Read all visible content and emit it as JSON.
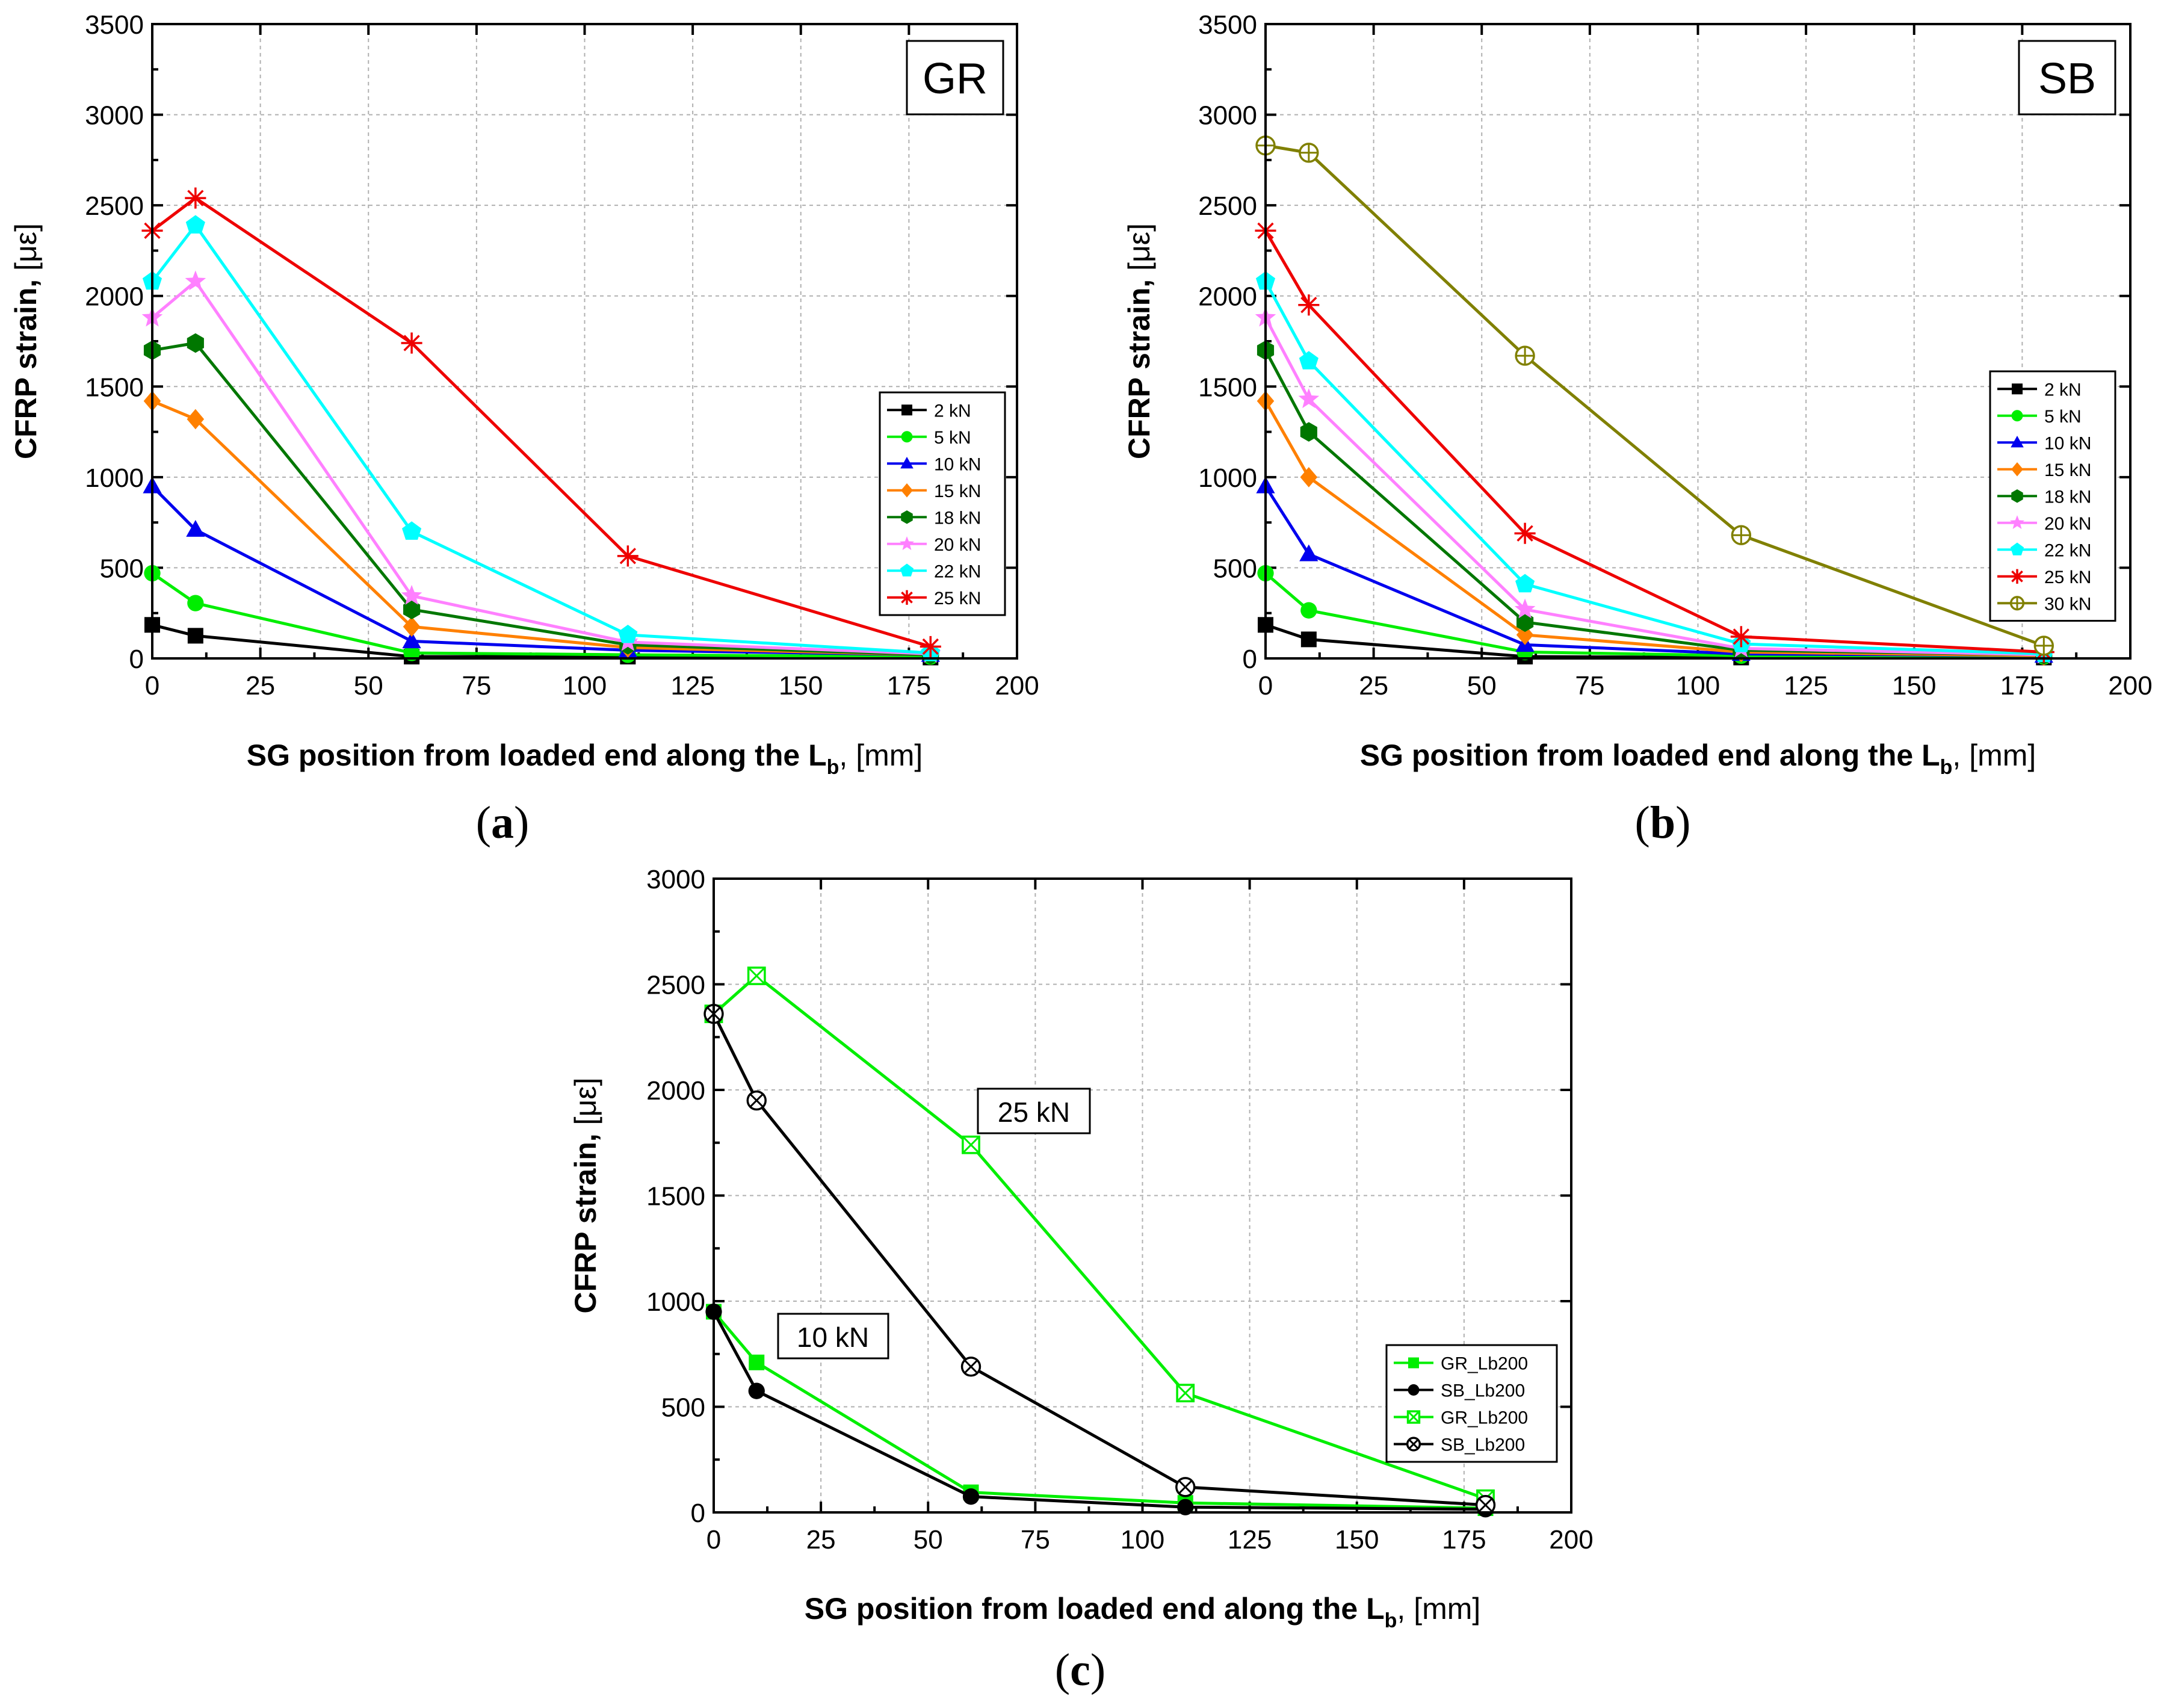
{
  "figure": {
    "panels": [
      {
        "letter": "a",
        "tag": "GR"
      },
      {
        "letter": "b",
        "tag": "SB"
      },
      {
        "letter": "c",
        "tag": ""
      }
    ],
    "annotations": [
      {
        "text": "25 kN"
      },
      {
        "text": "10 kN"
      }
    ]
  },
  "chart_data": [
    {
      "type": "line",
      "title": "",
      "tag": "GR",
      "xlabel_main": "SG position from loaded end along the L",
      "xlabel_sub": "b",
      "xlabel_unit": ", [mm]",
      "ylabel_main": "CFRP strain, ",
      "ylabel_unit": "[με]",
      "xlim": [
        0,
        200
      ],
      "ylim": [
        0,
        3500
      ],
      "xticks": [
        0,
        25,
        50,
        75,
        100,
        125,
        150,
        175,
        200
      ],
      "yticks": [
        0,
        500,
        1000,
        1500,
        2000,
        2500,
        3000,
        3500
      ],
      "grid": true,
      "legend_position": "middle-right",
      "x": [
        0,
        10,
        60,
        110,
        180
      ],
      "series": [
        {
          "name": "2 kN",
          "color": "#000000",
          "marker": "square",
          "values": [
            185,
            125,
            10,
            10,
            5
          ]
        },
        {
          "name": "5 kN",
          "color": "#00ee00",
          "marker": "circle",
          "values": [
            470,
            305,
            30,
            20,
            10
          ]
        },
        {
          "name": "10 kN",
          "color": "#0000ee",
          "marker": "triangle",
          "values": [
            950,
            710,
            95,
            45,
            20
          ]
        },
        {
          "name": "15 kN",
          "color": "#ff8000",
          "marker": "diamond",
          "values": [
            1420,
            1320,
            175,
            60,
            20
          ]
        },
        {
          "name": "18 kN",
          "color": "#007700",
          "marker": "hexagon",
          "values": [
            1700,
            1740,
            270,
            75,
            20
          ]
        },
        {
          "name": "20 kN",
          "color": "#ff80ff",
          "marker": "star",
          "values": [
            1880,
            2080,
            345,
            90,
            25
          ]
        },
        {
          "name": "22 kN",
          "color": "#00ffff",
          "marker": "pentagon",
          "values": [
            2080,
            2390,
            700,
            130,
            30
          ]
        },
        {
          "name": "25 kN",
          "color": "#ee0000",
          "marker": "asterisk",
          "values": [
            2360,
            2540,
            1740,
            565,
            65
          ]
        }
      ]
    },
    {
      "type": "line",
      "title": "",
      "tag": "SB",
      "xlabel_main": "SG position from loaded end along the L",
      "xlabel_sub": "b",
      "xlabel_unit": ", [mm]",
      "ylabel_main": "CFRP strain, ",
      "ylabel_unit": "[με]",
      "xlim": [
        0,
        200
      ],
      "ylim": [
        0,
        3500
      ],
      "xticks": [
        0,
        25,
        50,
        75,
        100,
        125,
        150,
        175,
        200
      ],
      "yticks": [
        0,
        500,
        1000,
        1500,
        2000,
        2500,
        3000,
        3500
      ],
      "grid": true,
      "legend_position": "middle-right",
      "x": [
        0,
        10,
        60,
        110,
        180
      ],
      "series": [
        {
          "name": "2 kN",
          "color": "#000000",
          "marker": "square",
          "values": [
            185,
            105,
            10,
            5,
            5
          ]
        },
        {
          "name": "5 kN",
          "color": "#00ee00",
          "marker": "circle",
          "values": [
            470,
            265,
            35,
            15,
            10
          ]
        },
        {
          "name": "10 kN",
          "color": "#0000ee",
          "marker": "triangle",
          "values": [
            950,
            575,
            75,
            25,
            15
          ]
        },
        {
          "name": "15 kN",
          "color": "#ff8000",
          "marker": "diamond",
          "values": [
            1420,
            1000,
            130,
            35,
            15
          ]
        },
        {
          "name": "18 kN",
          "color": "#007700",
          "marker": "hexagon",
          "values": [
            1700,
            1250,
            200,
            45,
            20
          ]
        },
        {
          "name": "20 kN",
          "color": "#ff80ff",
          "marker": "star",
          "values": [
            1880,
            1430,
            270,
            55,
            20
          ]
        },
        {
          "name": "22 kN",
          "color": "#00ffff",
          "marker": "pentagon",
          "values": [
            2080,
            1640,
            410,
            80,
            25
          ]
        },
        {
          "name": "25 kN",
          "color": "#ee0000",
          "marker": "asterisk",
          "values": [
            2360,
            1950,
            690,
            120,
            35
          ]
        },
        {
          "name": "30 kN",
          "color": "#808000",
          "marker": "circleplus",
          "values": [
            2830,
            2790,
            1670,
            680,
            70
          ]
        }
      ]
    },
    {
      "type": "line",
      "title": "",
      "xlabel_main": "SG position from loaded end along the L",
      "xlabel_sub": "b",
      "xlabel_unit": ", [mm]",
      "ylabel_main": "CFRP strain, ",
      "ylabel_unit": "[με]",
      "xlim": [
        0,
        200
      ],
      "ylim": [
        0,
        3000
      ],
      "xticks": [
        0,
        25,
        50,
        75,
        100,
        125,
        150,
        175,
        200
      ],
      "yticks": [
        0,
        500,
        1000,
        1500,
        2000,
        2500,
        3000
      ],
      "grid": true,
      "legend_position": "bottom-right",
      "x": [
        0,
        10,
        60,
        110,
        180
      ],
      "series": [
        {
          "name": "GR_Lb200",
          "color": "#00ee00",
          "marker": "square",
          "values": [
            950,
            710,
            95,
            45,
            20
          ]
        },
        {
          "name": "SB_Lb200",
          "color": "#000000",
          "marker": "circle",
          "values": [
            950,
            575,
            75,
            25,
            15
          ]
        },
        {
          "name": "GR_Lb200",
          "color": "#00ee00",
          "marker": "boxx",
          "values": [
            2360,
            2540,
            1740,
            565,
            65
          ]
        },
        {
          "name": "SB_Lb200",
          "color": "#000000",
          "marker": "circlex",
          "values": [
            2360,
            1950,
            690,
            120,
            35
          ]
        }
      ]
    }
  ]
}
